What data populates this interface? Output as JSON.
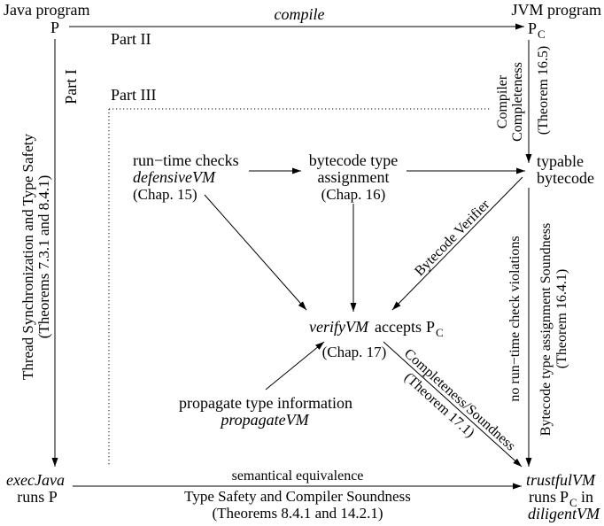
{
  "source_program": {
    "label": "Java program",
    "symbol": "P"
  },
  "target_program": {
    "label": "JVM program",
    "symbol": "P",
    "subscript": "C"
  },
  "compile_edge": {
    "label": "compile"
  },
  "parts": {
    "part1": "Part I",
    "part2": "Part II",
    "part3": "Part III"
  },
  "exec_java_edge": {
    "line1": "Thread Synchronization and Type Safety",
    "line2": "(Theorems 7.3.1 and 8.4.1)"
  },
  "compiler_completeness_edge": {
    "line1": "Compiler",
    "line2": "Completeness",
    "line3": "(Theorem 16.5)"
  },
  "runtime_checks": {
    "line1": "run−time checks",
    "machine": "defensiveVM",
    "chapter": "(Chap. 15)"
  },
  "bytecode_type_assignment": {
    "line1": "bytecode type",
    "line2": "assignment",
    "chapter": "(Chap. 16)"
  },
  "typable_bytecode": {
    "line1": "typable",
    "line2": "bytecode"
  },
  "bytecode_verifier_edge": {
    "label": "Bytecode Verifier"
  },
  "verifier": {
    "machine": "verifyVM",
    "verb": "accepts",
    "symbol": "P",
    "subscript": "C",
    "chapter": "(Chap. 17)"
  },
  "propagation": {
    "line1": "propagate type information",
    "machine": "propagateVM"
  },
  "verifier_soundness_edge": {
    "line1": "Completeness/Soundness",
    "line2": "(Theorem 17.1)"
  },
  "bytecode_soundness_edge": {
    "left": "no run−time check violations",
    "right1": "Bytecode type assignment Soundness",
    "right2": "(Theorem 16.4.1)"
  },
  "java_execution": {
    "machine": "execJava",
    "text": "runs P"
  },
  "jvm_execution": {
    "machine": "trustfulVM",
    "runs": "runs",
    "symbol": "P",
    "subscript": "C",
    "in": "in",
    "machine2": "diligentVM"
  },
  "equivalence_edge": {
    "above": "semantical equivalence",
    "below1": "Type Safety and Compiler Soundness",
    "below2": "(Theorems 8.4.1 and 14.2.1)"
  }
}
